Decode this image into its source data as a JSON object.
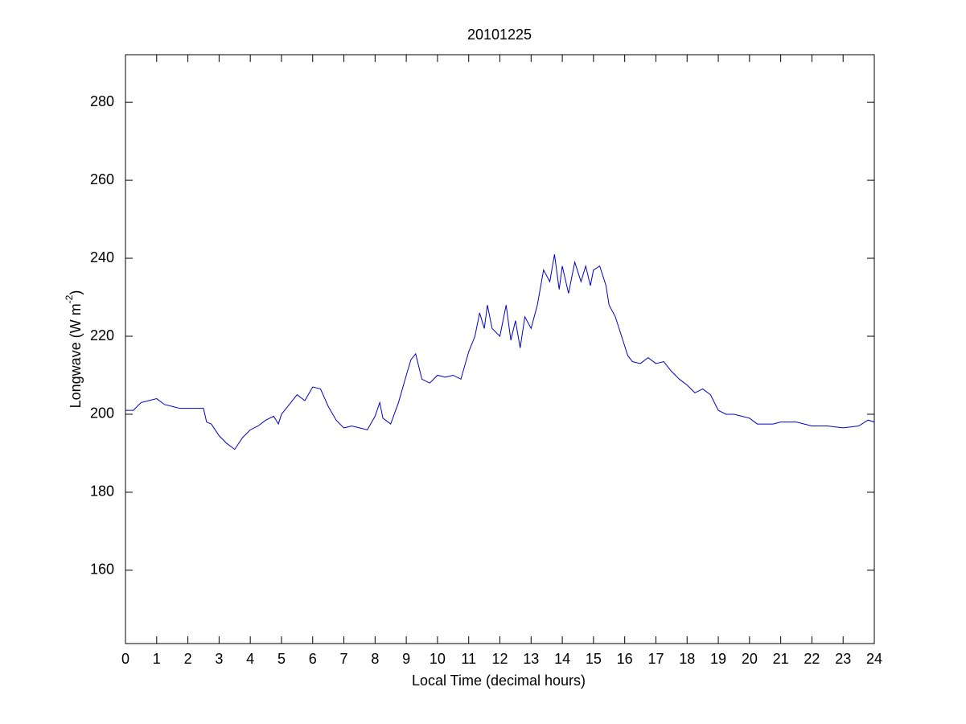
{
  "chart_data": {
    "type": "line",
    "title": "20101225",
    "x_label": "Local Time (decimal hours)",
    "y_label": {
      "text": "Longwave (W m",
      "superscript": "-2",
      "suffix": ")"
    },
    "xlim": [
      0,
      24
    ],
    "xticks": [
      0,
      1,
      2,
      3,
      4,
      5,
      6,
      7,
      8,
      9,
      10,
      11,
      12,
      13,
      14,
      15,
      16,
      17,
      18,
      19,
      20,
      21,
      22,
      23,
      24
    ],
    "ylim": [
      141.2,
      292.2
    ],
    "yticks": [
      160,
      180,
      200,
      220,
      240,
      260,
      280
    ],
    "grid": false,
    "series": [
      {
        "color": "#0000c8",
        "x": [
          0,
          0.25,
          0.5,
          0.75,
          1,
          1.25,
          1.5,
          1.75,
          2,
          2.25,
          2.5,
          2.6,
          2.75,
          3,
          3.25,
          3.5,
          3.75,
          4,
          4.25,
          4.5,
          4.75,
          4.9,
          5,
          5.25,
          5.5,
          5.75,
          6,
          6.25,
          6.5,
          6.75,
          7,
          7.25,
          7.5,
          7.75,
          8,
          8.15,
          8.25,
          8.5,
          8.75,
          9,
          9.15,
          9.3,
          9.5,
          9.75,
          10,
          10.25,
          10.5,
          10.75,
          11,
          11.2,
          11.35,
          11.5,
          11.6,
          11.75,
          12,
          12.2,
          12.35,
          12.5,
          12.65,
          12.8,
          13,
          13.2,
          13.4,
          13.6,
          13.75,
          13.9,
          14,
          14.2,
          14.4,
          14.6,
          14.75,
          14.9,
          15,
          15.2,
          15.4,
          15.5,
          15.7,
          15.9,
          16.1,
          16.25,
          16.5,
          16.75,
          17,
          17.25,
          17.5,
          17.75,
          18,
          18.25,
          18.5,
          18.75,
          19,
          19.25,
          19.5,
          19.75,
          20,
          20.25,
          20.5,
          20.75,
          21,
          21.5,
          22,
          22.5,
          23,
          23.5,
          23.8,
          24
        ],
        "values": [
          201,
          201,
          203,
          203.5,
          204,
          202.5,
          202,
          201.5,
          201.5,
          201.5,
          201.5,
          198,
          197.5,
          194.5,
          192.5,
          191,
          194,
          196,
          197,
          198.5,
          199.5,
          197.5,
          200,
          202.5,
          205,
          203.5,
          207,
          206.5,
          202,
          198.5,
          196.5,
          197,
          196.5,
          196,
          199.5,
          203,
          199,
          197.5,
          203,
          210,
          214,
          215.5,
          209,
          208,
          210,
          209.5,
          210,
          209,
          216,
          220,
          226,
          222,
          228,
          222,
          220,
          228,
          219,
          224,
          217,
          225,
          222,
          228,
          237,
          234,
          241,
          232,
          238,
          231,
          239,
          234,
          238,
          233,
          237,
          238,
          233,
          228,
          225,
          220,
          215,
          213.5,
          213,
          214.5,
          213,
          213.5,
          211,
          209,
          207.5,
          205.5,
          206.5,
          205,
          201,
          200,
          200,
          199.5,
          199,
          197.5,
          197.5,
          197.5,
          198,
          198,
          197,
          197,
          196.5,
          197,
          198.5,
          198
        ]
      }
    ]
  }
}
